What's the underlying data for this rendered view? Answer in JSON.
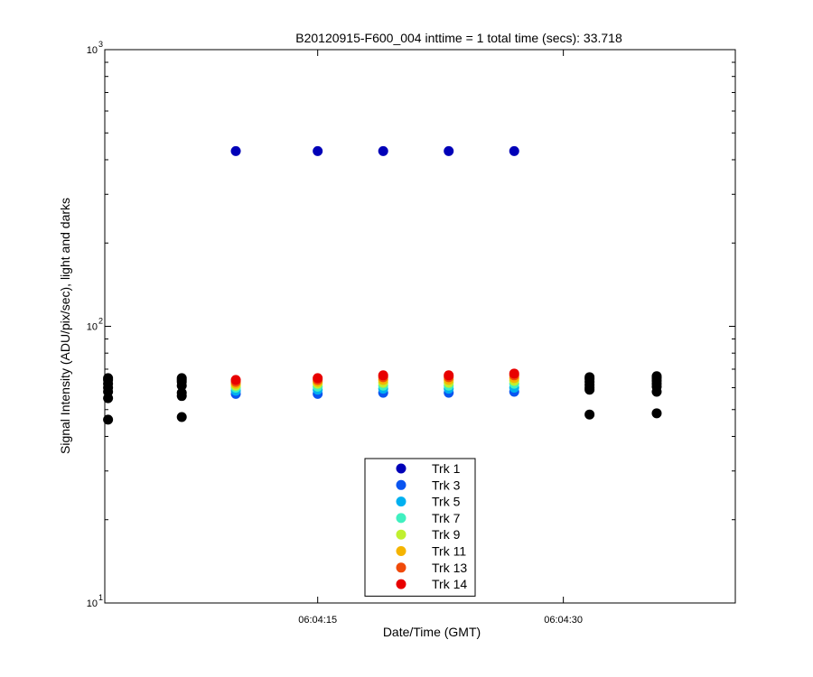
{
  "chart_data": {
    "type": "scatter",
    "title": "B20120915-F600_004 inttime = 1 total time (secs): 33.718",
    "xlabel": "Date/Time (GMT)",
    "ylabel": "Signal Intensity (ADU/pix/sec), light and darks",
    "y_scale": "log",
    "ylim": [
      10,
      1000
    ],
    "xlim": [
      "06:04:02",
      "06:04:40.5"
    ],
    "x_ticks": [
      "06:04:15",
      "06:04:30"
    ],
    "y_ticks": [
      {
        "base": "10",
        "exp": "1",
        "value": 10
      },
      {
        "base": "10",
        "exp": "2",
        "value": 100
      },
      {
        "base": "10",
        "exp": "3",
        "value": 1000
      }
    ],
    "grid": false,
    "legend_position": "bottom-center",
    "series": [
      {
        "name": "Trk 1",
        "color": "#0000b8",
        "points": [
          [
            "06:04:10",
            430
          ],
          [
            "06:04:15",
            430
          ],
          [
            "06:04:19",
            430
          ],
          [
            "06:04:23",
            430
          ],
          [
            "06:04:27",
            430
          ]
        ]
      },
      {
        "name": "Trk 3",
        "color": "#0a55f0",
        "points": [
          [
            "06:04:10",
            57
          ],
          [
            "06:04:15",
            57
          ],
          [
            "06:04:19",
            57.5
          ],
          [
            "06:04:23",
            57.5
          ],
          [
            "06:04:27",
            58
          ]
        ]
      },
      {
        "name": "Trk 5",
        "color": "#00b0f0",
        "points": [
          [
            "06:04:10",
            58.5
          ],
          [
            "06:04:15",
            59
          ],
          [
            "06:04:19",
            59.5
          ],
          [
            "06:04:23",
            59.5
          ],
          [
            "06:04:27",
            60
          ]
        ]
      },
      {
        "name": "Trk 7",
        "color": "#40f0c0",
        "points": [
          [
            "06:04:10",
            60
          ],
          [
            "06:04:15",
            60.5
          ],
          [
            "06:04:19",
            61
          ],
          [
            "06:04:23",
            61
          ],
          [
            "06:04:27",
            62
          ]
        ]
      },
      {
        "name": "Trk 9",
        "color": "#c0f030",
        "points": [
          [
            "06:04:10",
            61
          ],
          [
            "06:04:15",
            62
          ],
          [
            "06:04:19",
            62.5
          ],
          [
            "06:04:23",
            62.5
          ],
          [
            "06:04:27",
            63.5
          ]
        ]
      },
      {
        "name": "Trk 11",
        "color": "#f5b400",
        "points": [
          [
            "06:04:10",
            62
          ],
          [
            "06:04:15",
            63
          ],
          [
            "06:04:19",
            64
          ],
          [
            "06:04:23",
            64
          ],
          [
            "06:04:27",
            65
          ]
        ]
      },
      {
        "name": "Trk 13",
        "color": "#f04a0a",
        "points": [
          [
            "06:04:10",
            63
          ],
          [
            "06:04:15",
            64
          ],
          [
            "06:04:19",
            65.5
          ],
          [
            "06:04:23",
            65.5
          ],
          [
            "06:04:27",
            66.5
          ]
        ]
      },
      {
        "name": "Trk 14",
        "color": "#e80000",
        "points": [
          [
            "06:04:10",
            64
          ],
          [
            "06:04:15",
            65
          ],
          [
            "06:04:19",
            66.5
          ],
          [
            "06:04:23",
            66.5
          ],
          [
            "06:04:27",
            67.5
          ]
        ]
      },
      {
        "color": "#000000",
        "points": [
          [
            "06:04:02.2",
            46
          ],
          [
            "06:04:02.2",
            55
          ],
          [
            "06:04:02.2",
            58
          ],
          [
            "06:04:02.2",
            60
          ],
          [
            "06:04:02.2",
            62
          ],
          [
            "06:04:02.2",
            64
          ],
          [
            "06:04:02.2",
            65
          ],
          [
            "06:04:06.7",
            47
          ],
          [
            "06:04:06.7",
            56
          ],
          [
            "06:04:06.7",
            57.5
          ],
          [
            "06:04:06.7",
            61
          ],
          [
            "06:04:06.7",
            63
          ],
          [
            "06:04:06.7",
            64
          ],
          [
            "06:04:06.7",
            65
          ],
          [
            "06:04:31.6",
            48
          ],
          [
            "06:04:31.6",
            59
          ],
          [
            "06:04:31.6",
            60
          ],
          [
            "06:04:31.6",
            61.5
          ],
          [
            "06:04:31.6",
            63
          ],
          [
            "06:04:31.6",
            64.5
          ],
          [
            "06:04:31.6",
            65.5
          ],
          [
            "06:04:35.7",
            48.5
          ],
          [
            "06:04:35.7",
            58
          ],
          [
            "06:04:35.7",
            60.5
          ],
          [
            "06:04:35.7",
            62
          ],
          [
            "06:04:35.7",
            63.5
          ],
          [
            "06:04:35.7",
            65
          ],
          [
            "06:04:35.7",
            66
          ]
        ]
      }
    ]
  }
}
